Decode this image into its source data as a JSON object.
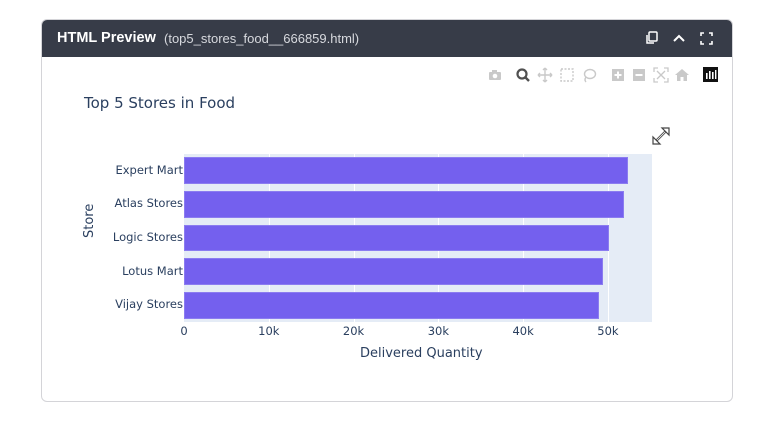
{
  "header": {
    "title": "HTML Preview",
    "filename": "(top5_stores_food__666859.html)",
    "icons": [
      "copy-icon",
      "collapse-chevron-up-icon",
      "fullscreen-icon"
    ]
  },
  "modebar": {
    "icons": [
      "camera-icon",
      "zoom-icon",
      "pan-icon",
      "box-select-icon",
      "lasso-select-icon",
      "zoom-in-icon",
      "zoom-out-icon",
      "autoscale-icon",
      "reset-axes-home-icon",
      "plotly-logo-icon"
    ]
  },
  "chart_data": {
    "type": "bar",
    "orientation": "horizontal",
    "title": "Top 5 Stores in Food",
    "xlabel": "Delivered Quantity",
    "ylabel": "Store",
    "categories": [
      "Expert Mart",
      "Atlas Stores",
      "Logic Stores",
      "Lotus Mart",
      "Vijay Stores"
    ],
    "values": [
      52400,
      51900,
      50100,
      49400,
      48900
    ],
    "xlim": [
      0,
      55200
    ],
    "xticks": [
      "0",
      "10k",
      "20k",
      "30k",
      "40k",
      "50k"
    ],
    "xtick_values": [
      0,
      10000,
      20000,
      30000,
      40000,
      50000
    ],
    "grid": true,
    "legend": false,
    "bar_color": "#7460ee",
    "plot_bg": "#e5ecf6"
  }
}
